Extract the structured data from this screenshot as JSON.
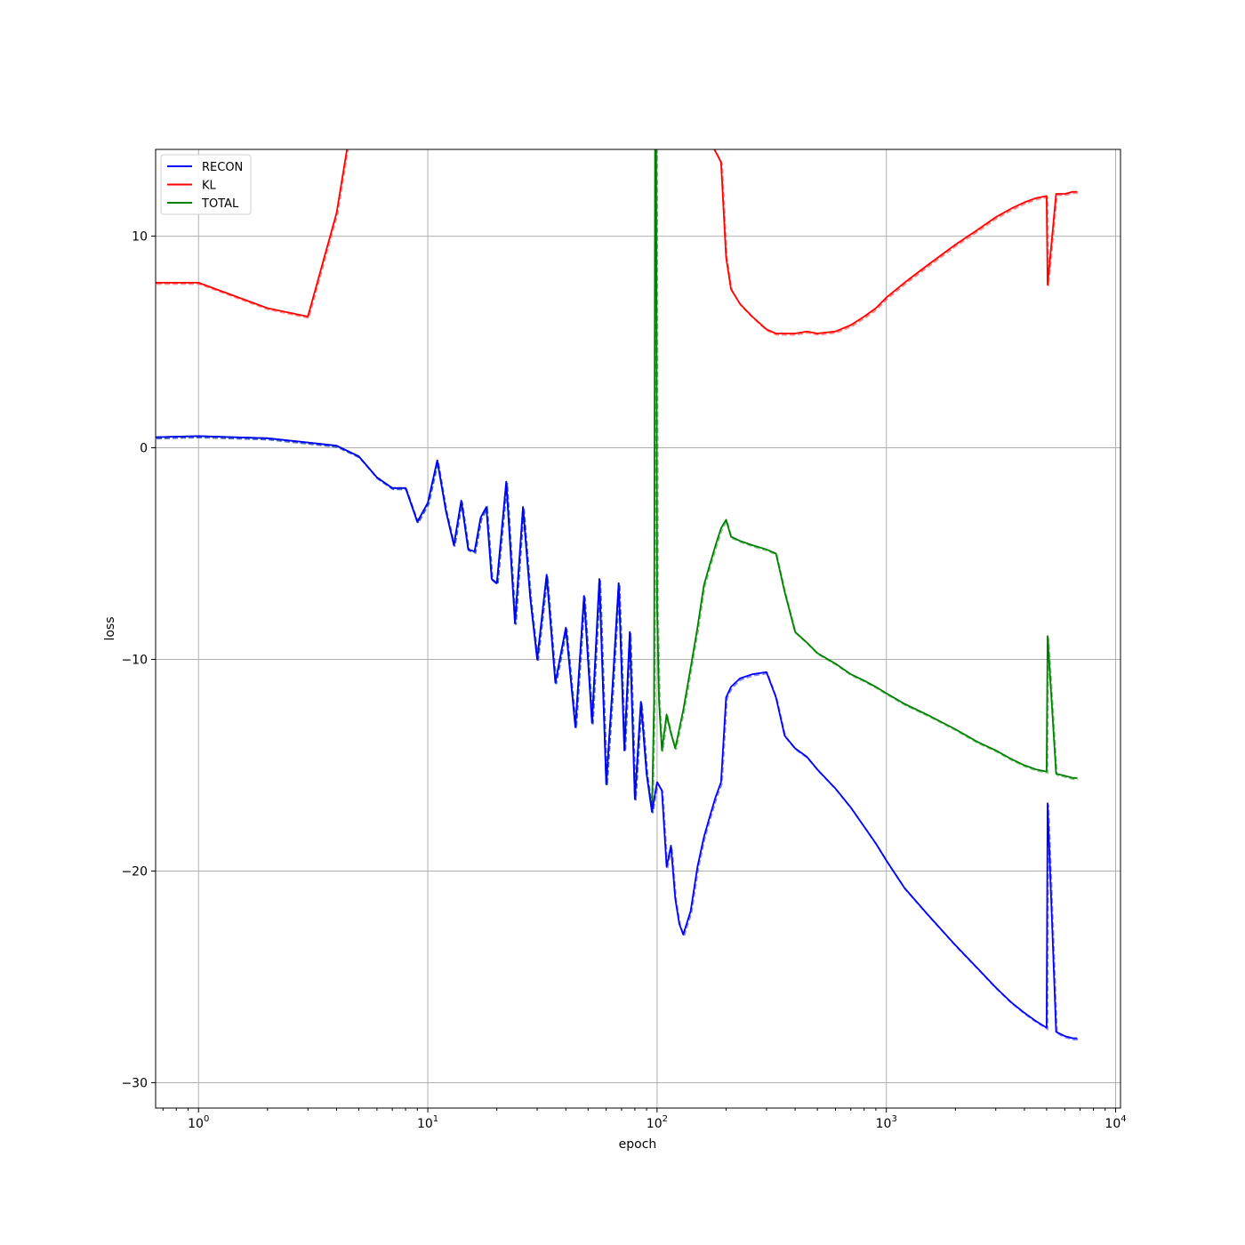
{
  "chart_data": {
    "type": "line",
    "title": "",
    "xlabel": "epoch",
    "ylabel": "loss",
    "xscale": "log",
    "xlim": [
      0.65,
      10500
    ],
    "ylim": [
      -31.2,
      14.1
    ],
    "grid": true,
    "legend_position": "top-left",
    "x_ticks": [
      {
        "value": 1,
        "base": "10",
        "exp": "0"
      },
      {
        "value": 10,
        "base": "10",
        "exp": "1"
      },
      {
        "value": 100,
        "base": "10",
        "exp": "2"
      },
      {
        "value": 1000,
        "base": "10",
        "exp": "3"
      },
      {
        "value": 10000,
        "base": "10",
        "exp": "4"
      }
    ],
    "y_ticks": [
      {
        "value": 10,
        "label": "10"
      },
      {
        "value": 0,
        "label": "0"
      },
      {
        "value": -10,
        "label": "−10"
      },
      {
        "value": -20,
        "label": "−20"
      },
      {
        "value": -30,
        "label": "−30"
      }
    ],
    "series": [
      {
        "name": "RECON",
        "color": "#0000ff",
        "x": [
          0.65,
          1,
          2,
          3,
          4,
          5,
          6,
          7,
          8,
          9,
          10,
          11,
          12,
          13,
          14,
          15,
          16,
          17,
          18,
          19,
          20,
          22,
          24,
          26,
          28,
          30,
          33,
          36,
          40,
          44,
          48,
          52,
          56,
          60,
          64,
          68,
          72,
          76,
          80,
          85,
          90,
          95,
          100,
          105,
          110,
          115,
          120,
          125,
          130,
          140,
          150,
          160,
          170,
          180,
          190,
          200,
          210,
          230,
          260,
          300,
          330,
          360,
          400,
          450,
          500,
          600,
          700,
          800,
          900,
          1000,
          1200,
          1500,
          2000,
          2500,
          3000,
          3500,
          4000,
          4500,
          5000,
          5050,
          5500,
          6000,
          6500,
          6800
        ],
        "y": [
          0.5,
          0.55,
          0.45,
          0.25,
          0.1,
          -0.4,
          -1.4,
          -1.9,
          -1.9,
          -3.5,
          -2.6,
          -0.6,
          -3.0,
          -4.6,
          -2.5,
          -4.8,
          -4.9,
          -3.3,
          -2.8,
          -6.2,
          -6.4,
          -1.6,
          -8.3,
          -2.8,
          -7.1,
          -10.0,
          -6.0,
          -11.1,
          -8.5,
          -13.2,
          -7.0,
          -13.0,
          -6.2,
          -15.9,
          -11.2,
          -6.4,
          -14.3,
          -8.7,
          -16.6,
          -12.0,
          -15.4,
          -17.2,
          -15.8,
          -16.2,
          -19.8,
          -18.8,
          -21.3,
          -22.5,
          -23.0,
          -21.9,
          -19.8,
          -18.4,
          -17.4,
          -16.5,
          -15.8,
          -11.8,
          -11.3,
          -10.9,
          -10.7,
          -10.6,
          -11.8,
          -13.6,
          -14.2,
          -14.6,
          -15.2,
          -16.1,
          -17.0,
          -17.9,
          -18.7,
          -19.5,
          -20.8,
          -22.0,
          -23.5,
          -24.6,
          -25.5,
          -26.2,
          -26.7,
          -27.1,
          -27.4,
          -16.8,
          -27.6,
          -27.8,
          -27.9,
          -27.9
        ]
      },
      {
        "name": "KL",
        "color": "#ff0000",
        "x": [
          0.65,
          1,
          2,
          3,
          4,
          4.5,
          170,
          190,
          200,
          210,
          230,
          260,
          300,
          330,
          360,
          400,
          450,
          500,
          600,
          700,
          800,
          900,
          1000,
          1200,
          1500,
          2000,
          2500,
          3000,
          3500,
          4000,
          4500,
          5000,
          5050,
          5500,
          6000,
          6500,
          6800
        ],
        "y": [
          7.8,
          7.8,
          6.6,
          6.2,
          11.1,
          14.5,
          14.5,
          13.5,
          9.0,
          7.5,
          6.8,
          6.2,
          5.6,
          5.4,
          5.4,
          5.4,
          5.5,
          5.4,
          5.5,
          5.8,
          6.2,
          6.6,
          7.1,
          7.8,
          8.6,
          9.6,
          10.3,
          10.9,
          11.3,
          11.6,
          11.8,
          11.9,
          7.7,
          12.0,
          12.0,
          12.1,
          12.1
        ]
      },
      {
        "name": "TOTAL",
        "color": "#008000",
        "x": [
          0.65,
          1,
          2,
          3,
          4,
          5,
          6,
          7,
          8,
          9,
          10,
          11,
          12,
          13,
          14,
          15,
          16,
          17,
          18,
          19,
          20,
          22,
          24,
          26,
          28,
          30,
          33,
          36,
          40,
          44,
          48,
          52,
          56,
          60,
          64,
          68,
          72,
          76,
          80,
          85,
          90,
          95,
          97,
          98,
          99,
          100,
          102,
          105,
          110,
          115,
          120,
          130,
          140,
          150,
          160,
          170,
          180,
          190,
          200,
          210,
          230,
          260,
          300,
          330,
          360,
          400,
          450,
          500,
          600,
          700,
          800,
          900,
          1000,
          1200,
          1500,
          2000,
          2500,
          3000,
          3500,
          4000,
          4500,
          5000,
          5050,
          5500,
          6000,
          6500,
          6800
        ],
        "y": [
          0.5,
          0.55,
          0.45,
          0.25,
          0.1,
          -0.4,
          -1.4,
          -1.9,
          -1.9,
          -3.5,
          -2.6,
          -0.6,
          -3.0,
          -4.6,
          -2.5,
          -4.8,
          -4.9,
          -3.3,
          -2.8,
          -6.2,
          -6.4,
          -1.6,
          -8.3,
          -2.8,
          -7.1,
          -10.0,
          -6.0,
          -11.1,
          -8.5,
          -13.2,
          -7.0,
          -13.0,
          -6.2,
          -15.9,
          -11.2,
          -6.4,
          -14.3,
          -8.7,
          -16.6,
          -12.0,
          -15.4,
          -17.2,
          -12.0,
          14.1,
          14.1,
          -7.5,
          -12.0,
          -14.3,
          -12.6,
          -13.5,
          -14.2,
          -12.4,
          -10.4,
          -8.5,
          -6.5,
          -5.5,
          -4.6,
          -3.8,
          -3.4,
          -4.2,
          -4.4,
          -4.6,
          -4.8,
          -5.0,
          -6.8,
          -8.7,
          -9.2,
          -9.7,
          -10.2,
          -10.7,
          -11.0,
          -11.3,
          -11.6,
          -12.1,
          -12.6,
          -13.3,
          -13.9,
          -14.3,
          -14.7,
          -15.0,
          -15.2,
          -15.3,
          -8.9,
          -15.4,
          -15.5,
          -15.6,
          -15.6
        ]
      }
    ]
  }
}
